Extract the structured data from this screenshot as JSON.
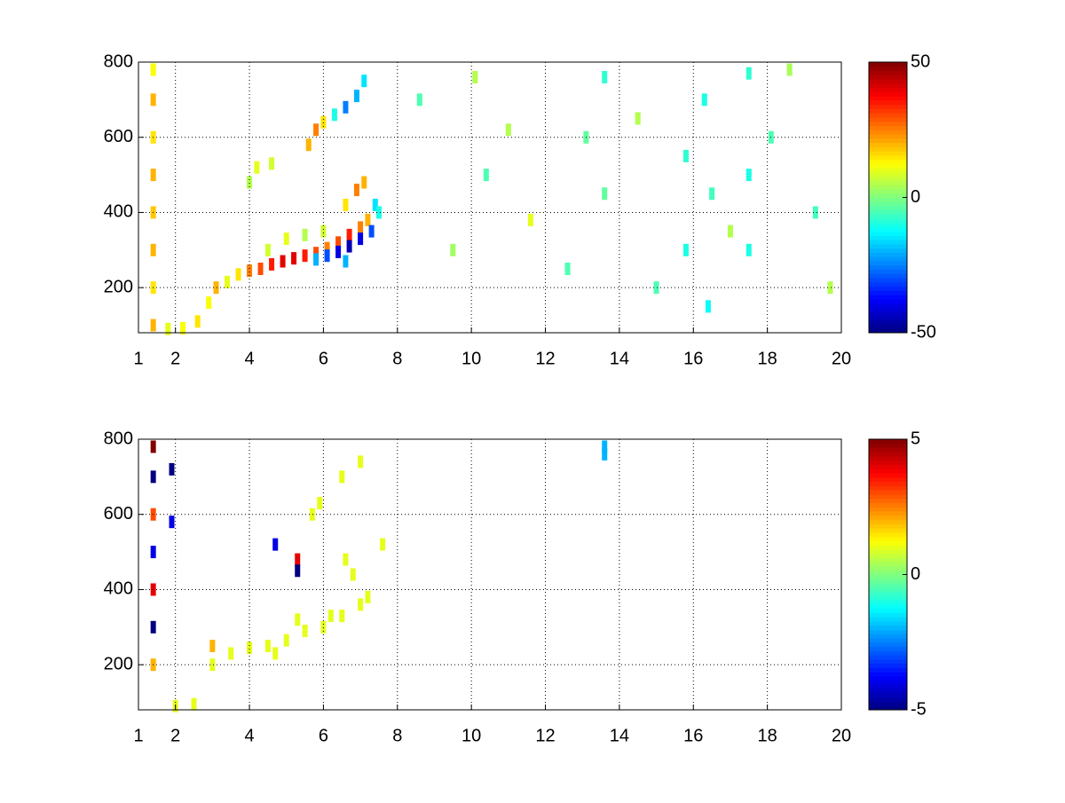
{
  "chart_data": [
    {
      "type": "heatmap",
      "colormap": "jet",
      "grid": true,
      "xlim": [
        1,
        20
      ],
      "xticks": [
        1,
        2,
        4,
        6,
        8,
        10,
        12,
        14,
        16,
        18,
        20
      ],
      "ylim": [
        80,
        800
      ],
      "yticks": [
        200,
        400,
        600,
        800
      ],
      "clim": [
        -50,
        50
      ],
      "cticks": [
        -50,
        0,
        50
      ],
      "x": [
        1.4,
        1.4,
        1.4,
        1.4,
        1.4,
        1.4,
        1.4,
        1.4,
        1.8,
        2.2,
        2.6,
        2.9,
        3.1,
        3.4,
        3.7,
        4.0,
        4.3,
        4.6,
        4.9,
        5.2,
        5.5,
        5.8,
        6.1,
        6.4,
        6.7,
        7.0,
        7.2,
        5.8,
        6.1,
        6.4,
        6.7,
        7.0,
        7.3,
        6.6,
        4.5,
        5.0,
        5.5,
        6.0,
        6.6,
        6.9,
        7.1,
        7.4,
        7.5,
        5.6,
        5.8,
        6.0,
        6.3,
        6.6,
        6.9,
        7.1,
        4.2,
        4.6,
        4.0,
        8.6,
        9.5,
        10.1,
        10.4,
        11.0,
        11.6,
        12.6,
        13.1,
        13.6,
        13.6,
        14.5,
        15.0,
        15.8,
        15.8,
        16.3,
        16.4,
        16.5,
        17.0,
        17.5,
        17.5,
        17.5,
        18.1,
        18.6,
        19.3,
        19.7
      ],
      "y": [
        100,
        200,
        300,
        400,
        500,
        600,
        700,
        780,
        90,
        92,
        110,
        160,
        200,
        215,
        235,
        245,
        250,
        262,
        270,
        278,
        285,
        292,
        305,
        320,
        340,
        360,
        380,
        275,
        285,
        295,
        310,
        330,
        350,
        270,
        300,
        330,
        340,
        350,
        420,
        460,
        480,
        420,
        400,
        580,
        620,
        640,
        660,
        680,
        710,
        750,
        520,
        530,
        480,
        700,
        300,
        760,
        500,
        620,
        380,
        250,
        600,
        760,
        450,
        650,
        200,
        300,
        550,
        700,
        150,
        450,
        350,
        770,
        300,
        500,
        600,
        780,
        400,
        200
      ],
      "values": [
        20,
        15,
        20,
        18,
        20,
        15,
        20,
        12,
        10,
        12,
        15,
        12,
        20,
        10,
        15,
        25,
        30,
        35,
        40,
        40,
        35,
        30,
        25,
        30,
        35,
        25,
        20,
        -20,
        -30,
        -40,
        -45,
        -40,
        -30,
        -20,
        8,
        10,
        5,
        8,
        15,
        25,
        20,
        -15,
        -10,
        20,
        25,
        15,
        -10,
        -25,
        -20,
        -15,
        10,
        8,
        5,
        -5,
        3,
        5,
        -5,
        5,
        10,
        -5,
        -3,
        -8,
        -3,
        5,
        -5,
        -10,
        -8,
        -10,
        -12,
        -6,
        5,
        -8,
        -10,
        -10,
        -5,
        4,
        -6,
        5
      ]
    },
    {
      "type": "heatmap",
      "colormap": "jet",
      "grid": true,
      "xlim": [
        1,
        20
      ],
      "xticks": [
        1,
        2,
        4,
        6,
        8,
        10,
        12,
        14,
        16,
        18,
        20
      ],
      "ylim": [
        80,
        800
      ],
      "yticks": [
        200,
        400,
        600,
        800
      ],
      "clim": [
        -5,
        5
      ],
      "cticks": [
        -5,
        0,
        5
      ],
      "x": [
        2.0,
        2.5,
        3.0,
        3.5,
        4.0,
        4.5,
        5.0,
        5.5,
        6.0,
        6.5,
        7.0,
        7.2,
        6.8,
        6.6,
        7.6,
        5.7,
        5.9,
        6.5,
        7.0,
        4.7,
        5.3,
        6.2,
        1.4,
        1.4,
        1.4,
        1.4,
        1.4,
        1.4,
        1.4,
        1.9,
        1.9,
        5.3,
        5.3,
        3.0,
        13.6,
        13.6,
        4.7
      ],
      "y": [
        90,
        95,
        200,
        230,
        245,
        250,
        265,
        290,
        300,
        330,
        360,
        380,
        440,
        480,
        520,
        600,
        630,
        700,
        740,
        230,
        320,
        330,
        780,
        700,
        600,
        500,
        400,
        300,
        200,
        720,
        580,
        480,
        450,
        250,
        780,
        760,
        520
      ],
      "values": [
        1,
        1,
        1,
        1,
        1,
        1,
        1,
        1,
        1,
        1,
        1,
        1,
        1,
        1,
        1,
        1,
        1,
        1,
        1,
        1,
        1,
        1,
        5,
        -5,
        3,
        -4,
        4,
        -5,
        2,
        -5,
        -4,
        4,
        -5,
        2,
        -2,
        -2,
        -4
      ]
    }
  ]
}
